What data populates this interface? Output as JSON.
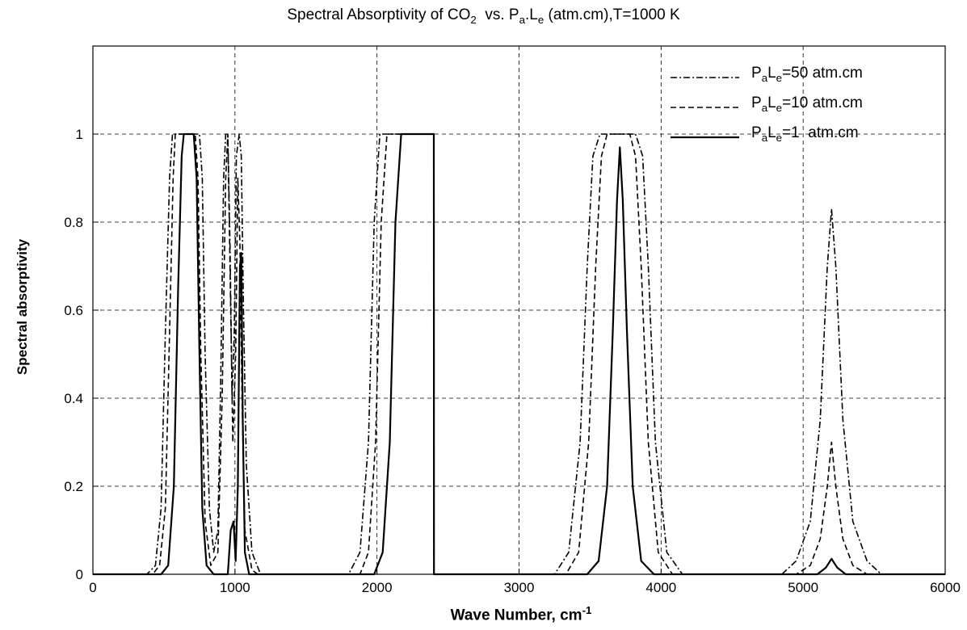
{
  "title": {
    "prefix": "Spectral Absorptivity of CO",
    "prefix_sub": "2",
    "mid1": "  vs. P",
    "mid1_sub": "a",
    "mid2": ".L",
    "mid2_sub": "e",
    "suffix": " (atm.cm),T=1000 K"
  },
  "axes": {
    "ylabel": "Spectral absorptivity",
    "xlabel_main": "Wave Number, cm",
    "xlabel_sup": "-1"
  },
  "legend": [
    {
      "p": "P",
      "p_sub": "a",
      "l": "L",
      "l_sub": "e",
      "rest": "=50 atm.cm",
      "style": "dashdot"
    },
    {
      "p": "P",
      "p_sub": "a",
      "l": "L",
      "l_sub": "e",
      "rest": "=10 atm.cm",
      "style": "dashed"
    },
    {
      "p": "P",
      "p_sub": "a",
      "l": "L",
      "l_sub": "e",
      "rest": "=1  atm.cm",
      "style": "solid"
    }
  ],
  "chart_data": {
    "type": "line",
    "title": "Spectral Absorptivity of CO2 vs. Pa.Le (atm.cm),T=1000 K",
    "xlabel": "Wave Number, cm-1",
    "ylabel": "Spectral absorptivity",
    "xlim": [
      0,
      6000
    ],
    "ylim": [
      0,
      1.2
    ],
    "xticks": [
      0,
      1000,
      2000,
      3000,
      4000,
      5000,
      6000
    ],
    "yticks": [
      0,
      0.2,
      0.4,
      0.6,
      0.8,
      1
    ],
    "grid": true,
    "legend_position": "top-right",
    "colors": {
      "line": "#000000",
      "grid": "#000000",
      "background": "#ffffff"
    },
    "series": [
      {
        "name": "PaLe=50 atm.cm",
        "style": "dashdot",
        "points": [
          [
            0,
            0
          ],
          [
            380,
            0
          ],
          [
            440,
            0.02
          ],
          [
            480,
            0.15
          ],
          [
            510,
            0.55
          ],
          [
            540,
            0.9
          ],
          [
            560,
            1
          ],
          [
            680,
            1
          ],
          [
            720,
            1
          ],
          [
            750,
            1
          ],
          [
            770,
            0.9
          ],
          [
            790,
            0.5
          ],
          [
            820,
            0.15
          ],
          [
            850,
            0.05
          ],
          [
            880,
            0.1
          ],
          [
            900,
            0.45
          ],
          [
            920,
            0.9
          ],
          [
            935,
            1
          ],
          [
            950,
            1
          ],
          [
            965,
            0.75
          ],
          [
            980,
            0.4
          ],
          [
            995,
            0.55
          ],
          [
            1010,
            0.95
          ],
          [
            1030,
            1
          ],
          [
            1045,
            0.95
          ],
          [
            1060,
            0.6
          ],
          [
            1080,
            0.25
          ],
          [
            1120,
            0.05
          ],
          [
            1180,
            0
          ],
          [
            1800,
            0
          ],
          [
            1880,
            0.05
          ],
          [
            1940,
            0.3
          ],
          [
            1980,
            0.8
          ],
          [
            2020,
            1
          ],
          [
            2400,
            1
          ],
          [
            2401,
            0
          ],
          [
            3250,
            0
          ],
          [
            3350,
            0.05
          ],
          [
            3430,
            0.3
          ],
          [
            3480,
            0.7
          ],
          [
            3520,
            0.95
          ],
          [
            3570,
            1
          ],
          [
            3820,
            1
          ],
          [
            3870,
            0.95
          ],
          [
            3910,
            0.7
          ],
          [
            3960,
            0.3
          ],
          [
            4040,
            0.05
          ],
          [
            4150,
            0
          ],
          [
            4850,
            0
          ],
          [
            4950,
            0.03
          ],
          [
            5050,
            0.12
          ],
          [
            5120,
            0.35
          ],
          [
            5170,
            0.7
          ],
          [
            5200,
            0.83
          ],
          [
            5230,
            0.7
          ],
          [
            5280,
            0.35
          ],
          [
            5350,
            0.12
          ],
          [
            5450,
            0.03
          ],
          [
            5550,
            0
          ],
          [
            6000,
            0
          ]
        ]
      },
      {
        "name": "PaLe=10 atm.cm",
        "style": "dashed",
        "points": [
          [
            0,
            0
          ],
          [
            420,
            0
          ],
          [
            470,
            0.02
          ],
          [
            510,
            0.15
          ],
          [
            540,
            0.55
          ],
          [
            565,
            0.9
          ],
          [
            580,
            1
          ],
          [
            690,
            1
          ],
          [
            720,
            1
          ],
          [
            740,
            0.9
          ],
          [
            760,
            0.5
          ],
          [
            790,
            0.12
          ],
          [
            830,
            0.02
          ],
          [
            880,
            0.05
          ],
          [
            910,
            0.4
          ],
          [
            935,
            0.9
          ],
          [
            950,
            1
          ],
          [
            965,
            0.7
          ],
          [
            985,
            0.3
          ],
          [
            1005,
            0.5
          ],
          [
            1020,
            0.9
          ],
          [
            1035,
            0.75
          ],
          [
            1050,
            0.4
          ],
          [
            1070,
            0.1
          ],
          [
            1120,
            0.01
          ],
          [
            1160,
            0
          ],
          [
            1880,
            0
          ],
          [
            1940,
            0.05
          ],
          [
            1990,
            0.3
          ],
          [
            2030,
            0.8
          ],
          [
            2070,
            1
          ],
          [
            2400,
            1
          ],
          [
            2401,
            0
          ],
          [
            3330,
            0
          ],
          [
            3420,
            0.05
          ],
          [
            3490,
            0.3
          ],
          [
            3540,
            0.7
          ],
          [
            3580,
            0.95
          ],
          [
            3620,
            1
          ],
          [
            3780,
            1
          ],
          [
            3820,
            0.95
          ],
          [
            3860,
            0.7
          ],
          [
            3910,
            0.3
          ],
          [
            3980,
            0.05
          ],
          [
            4080,
            0
          ],
          [
            4950,
            0
          ],
          [
            5050,
            0.02
          ],
          [
            5120,
            0.08
          ],
          [
            5170,
            0.2
          ],
          [
            5200,
            0.3
          ],
          [
            5230,
            0.2
          ],
          [
            5280,
            0.08
          ],
          [
            5350,
            0.02
          ],
          [
            5450,
            0
          ],
          [
            6000,
            0
          ]
        ]
      },
      {
        "name": "PaLe=1  atm.cm",
        "style": "solid",
        "points": [
          [
            0,
            0
          ],
          [
            480,
            0
          ],
          [
            530,
            0.02
          ],
          [
            570,
            0.2
          ],
          [
            600,
            0.65
          ],
          [
            625,
            0.95
          ],
          [
            640,
            1
          ],
          [
            710,
            1
          ],
          [
            730,
            0.9
          ],
          [
            750,
            0.5
          ],
          [
            770,
            0.15
          ],
          [
            800,
            0.02
          ],
          [
            850,
            0
          ],
          [
            950,
            0
          ],
          [
            970,
            0.1
          ],
          [
            990,
            0.12
          ],
          [
            1005,
            0.03
          ],
          [
            1020,
            0.2
          ],
          [
            1035,
            0.7
          ],
          [
            1045,
            0.73
          ],
          [
            1055,
            0.35
          ],
          [
            1070,
            0.05
          ],
          [
            1100,
            0
          ],
          [
            1980,
            0
          ],
          [
            2040,
            0.05
          ],
          [
            2090,
            0.3
          ],
          [
            2130,
            0.8
          ],
          [
            2170,
            1
          ],
          [
            2400,
            1
          ],
          [
            2401,
            0
          ],
          [
            3480,
            0
          ],
          [
            3560,
            0.03
          ],
          [
            3620,
            0.2
          ],
          [
            3660,
            0.55
          ],
          [
            3690,
            0.85
          ],
          [
            3710,
            0.97
          ],
          [
            3730,
            0.85
          ],
          [
            3760,
            0.55
          ],
          [
            3800,
            0.2
          ],
          [
            3860,
            0.03
          ],
          [
            3950,
            0
          ],
          [
            5100,
            0
          ],
          [
            5160,
            0.015
          ],
          [
            5200,
            0.035
          ],
          [
            5240,
            0.015
          ],
          [
            5300,
            0
          ],
          [
            6000,
            0
          ]
        ]
      }
    ]
  }
}
